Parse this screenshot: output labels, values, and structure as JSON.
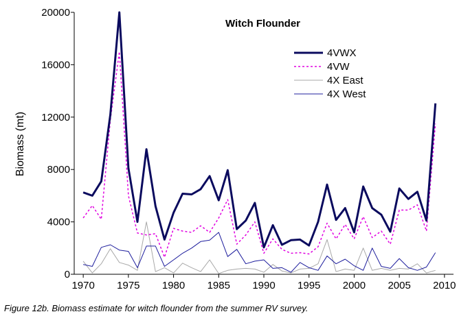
{
  "caption": "Figure 12b. Biomass estimate for witch flounder from the summer RV survey.",
  "chart_data": {
    "type": "line",
    "title": "Witch Flounder",
    "xlabel": "",
    "ylabel": "Biomass (mt)",
    "xlim": [
      1969,
      2011
    ],
    "ylim": [
      0,
      20000
    ],
    "x_ticks": [
      1970,
      1975,
      1980,
      1985,
      1990,
      1995,
      2000,
      2005,
      2010
    ],
    "y_ticks": [
      0,
      4000,
      8000,
      12000,
      16000,
      20000
    ],
    "grid": false,
    "legend_position": "top-right",
    "x": [
      1970,
      1971,
      1972,
      1973,
      1974,
      1975,
      1976,
      1977,
      1978,
      1979,
      1980,
      1981,
      1982,
      1983,
      1984,
      1985,
      1986,
      1987,
      1988,
      1989,
      1990,
      1991,
      1992,
      1993,
      1994,
      1995,
      1996,
      1997,
      1998,
      1999,
      2000,
      2001,
      2002,
      2003,
      2004,
      2005,
      2006,
      2007,
      2008,
      2009
    ],
    "series": [
      {
        "name": "4VWX",
        "color": "#0a0a5e",
        "style": "solid-thick",
        "values": [
          6250,
          6000,
          7100,
          12200,
          20000,
          8100,
          4000,
          9550,
          5200,
          2650,
          4700,
          6150,
          6100,
          6500,
          7500,
          5650,
          7950,
          3450,
          4100,
          5450,
          2050,
          3750,
          2250,
          2600,
          2650,
          2200,
          4000,
          6850,
          4150,
          5050,
          3200,
          6700,
          5050,
          4550,
          3250,
          6550,
          5750,
          6300,
          4100,
          13050
        ]
      },
      {
        "name": "4VW",
        "color": "#e000e0",
        "style": "dashed",
        "values": [
          4300,
          5250,
          4200,
          11800,
          17000,
          6000,
          3150,
          3000,
          3100,
          1300,
          3500,
          3300,
          3200,
          3700,
          3200,
          4300,
          5700,
          2300,
          3000,
          4000,
          1600,
          2700,
          1900,
          1600,
          1650,
          1550,
          2100,
          3900,
          2700,
          3800,
          2700,
          4400,
          2800,
          3300,
          2300,
          4900,
          4900,
          5300,
          3300,
          11500
        ]
      },
      {
        "name": "4X East",
        "color": "#a8a8a8",
        "style": "solid-thin",
        "values": [
          1000,
          100,
          800,
          1950,
          900,
          700,
          300,
          4000,
          200,
          500,
          100,
          850,
          500,
          200,
          1100,
          50,
          300,
          400,
          450,
          400,
          150,
          750,
          250,
          100,
          400,
          450,
          800,
          2650,
          200,
          400,
          300,
          2000,
          300,
          450,
          300,
          450,
          400,
          800,
          100,
          300
        ]
      },
      {
        "name": "4X West",
        "color": "#1c1c9c",
        "style": "solid-thin",
        "values": [
          750,
          600,
          2050,
          2250,
          1850,
          1750,
          500,
          2150,
          2150,
          600,
          1100,
          1600,
          2000,
          2500,
          2600,
          3200,
          1350,
          1900,
          800,
          1000,
          1100,
          450,
          500,
          150,
          900,
          500,
          300,
          1400,
          800,
          1150,
          650,
          300,
          2000,
          600,
          450,
          1200,
          500,
          300,
          550,
          1650
        ]
      }
    ]
  }
}
